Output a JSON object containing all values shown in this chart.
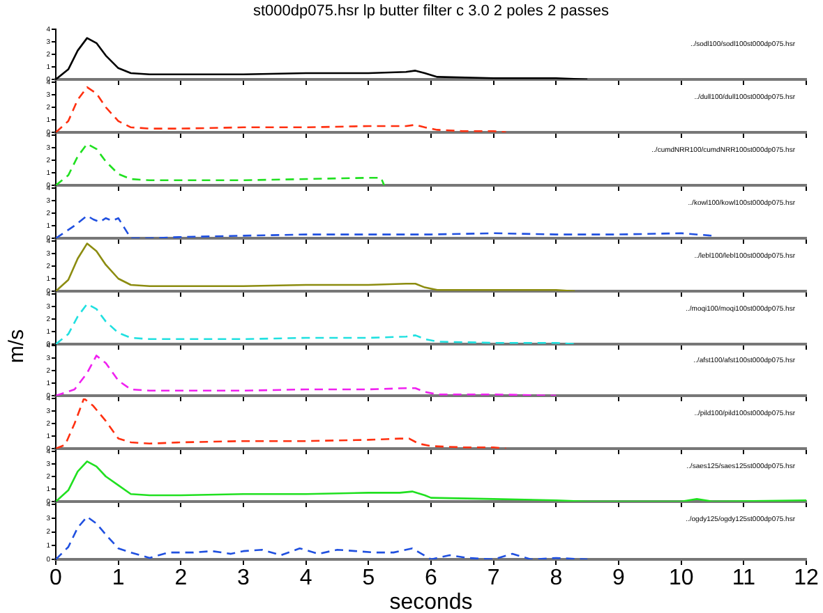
{
  "chart_data": [
    {
      "type": "line",
      "title": "st000dp075.hsr  lp  butter  filter  c  3.0  2  poles  2  passes",
      "annotations": [
        "../sodl100/sodl100st000dp075.hsr"
      ],
      "line_style": "solid",
      "marker": "none",
      "legend": false,
      "tick_labels": "y",
      "xlim": [
        0,
        12
      ],
      "xticks": [
        0,
        1,
        2,
        3,
        4,
        5,
        6,
        7,
        8,
        9,
        10,
        11,
        12
      ],
      "ylim": [
        0,
        4
      ],
      "yticks": [
        0,
        1,
        2,
        3,
        4
      ],
      "series": [
        {
          "color": "#000000",
          "x": [
            0,
            0.2,
            0.35,
            0.5,
            0.65,
            0.8,
            1.0,
            1.2,
            1.5,
            2,
            3,
            4,
            5,
            5.6,
            5.75,
            5.9,
            6.1,
            7,
            8,
            8.5
          ],
          "values": [
            0,
            0.8,
            2.3,
            3.3,
            2.9,
            1.9,
            0.9,
            0.5,
            0.4,
            0.4,
            0.4,
            0.5,
            0.5,
            0.6,
            0.7,
            0.5,
            0.2,
            0.1,
            0.1,
            0
          ]
        }
      ]
    },
    {
      "type": "line",
      "annotations": [
        "../dull100/dull100st000dp075.hsr"
      ],
      "line_style": "dashed",
      "marker": "none",
      "legend": false,
      "tick_labels": "y",
      "xlim": [
        0,
        12
      ],
      "xticks": [
        0,
        1,
        2,
        3,
        4,
        5,
        6,
        7,
        8,
        9,
        10,
        11,
        12
      ],
      "ylim": [
        0,
        4
      ],
      "yticks": [
        0,
        1,
        2,
        3,
        4
      ],
      "series": [
        {
          "color": "#ff3010",
          "x": [
            0,
            0.2,
            0.35,
            0.5,
            0.65,
            0.8,
            1.0,
            1.2,
            1.5,
            2,
            3,
            4,
            5,
            5.6,
            5.75,
            5.9,
            6.1,
            6.5,
            7,
            7.2
          ],
          "values": [
            0,
            0.9,
            2.6,
            3.6,
            3.1,
            2.0,
            0.9,
            0.4,
            0.3,
            0.3,
            0.4,
            0.4,
            0.5,
            0.5,
            0.6,
            0.4,
            0.2,
            0.1,
            0.1,
            0
          ]
        }
      ]
    },
    {
      "type": "line",
      "annotations": [
        "../cumdNRR100/cumdNRR100st000dp075.hsr"
      ],
      "line_style": "dashed",
      "marker": "none",
      "legend": false,
      "tick_labels": "y",
      "xlim": [
        0,
        12
      ],
      "xticks": [
        0,
        1,
        2,
        3,
        4,
        5,
        6,
        7,
        8,
        9,
        10,
        11,
        12
      ],
      "ylim": [
        0,
        4
      ],
      "yticks": [
        0,
        1,
        2,
        3,
        4
      ],
      "series": [
        {
          "color": "#20e020",
          "x": [
            0,
            0.2,
            0.35,
            0.5,
            0.65,
            0.8,
            1.0,
            1.2,
            1.5,
            2,
            3,
            4,
            5,
            5.2,
            5.25
          ],
          "values": [
            0,
            0.8,
            2.3,
            3.3,
            2.9,
            1.9,
            0.9,
            0.5,
            0.4,
            0.4,
            0.4,
            0.5,
            0.6,
            0.6,
            0
          ]
        }
      ]
    },
    {
      "type": "line",
      "annotations": [
        "../kowl100/kowl100st000dp075.hsr"
      ],
      "line_style": "dashed",
      "marker": "none",
      "legend": false,
      "tick_labels": "y",
      "xlim": [
        0,
        12
      ],
      "xticks": [
        0,
        1,
        2,
        3,
        4,
        5,
        6,
        7,
        8,
        9,
        10,
        11,
        12
      ],
      "ylim": [
        0,
        4
      ],
      "yticks": [
        0,
        1,
        2,
        3,
        4
      ],
      "series": [
        {
          "color": "#2050e0",
          "x": [
            0,
            0.3,
            0.5,
            0.6,
            0.7,
            0.8,
            0.9,
            1.0,
            1.1,
            1.2,
            1.5,
            2,
            3,
            4,
            5,
            6,
            7,
            8,
            9,
            10,
            10.5
          ],
          "values": [
            0,
            1,
            1.8,
            1.5,
            1.3,
            1.6,
            1.4,
            1.6,
            0.8,
            0,
            0,
            0.1,
            0.2,
            0.3,
            0.3,
            0.3,
            0.4,
            0.3,
            0.3,
            0.4,
            0.2
          ]
        }
      ]
    },
    {
      "type": "line",
      "annotations": [
        "../lebl100/lebl100st000dp075.hsr"
      ],
      "line_style": "solid",
      "marker": "none",
      "legend": false,
      "tick_labels": "y",
      "xlim": [
        0,
        12
      ],
      "xticks": [
        0,
        1,
        2,
        3,
        4,
        5,
        6,
        7,
        8,
        9,
        10,
        11,
        12
      ],
      "ylim": [
        0,
        4
      ],
      "yticks": [
        0,
        1,
        2,
        3,
        4
      ],
      "series": [
        {
          "color": "#8c8c10",
          "x": [
            0,
            0.2,
            0.35,
            0.5,
            0.65,
            0.8,
            1.0,
            1.2,
            1.5,
            2,
            3,
            4,
            5,
            5.6,
            5.75,
            5.9,
            6.1,
            7,
            8,
            8.3
          ],
          "values": [
            0,
            0.9,
            2.6,
            3.8,
            3.2,
            2.1,
            1.0,
            0.5,
            0.4,
            0.4,
            0.4,
            0.5,
            0.5,
            0.6,
            0.6,
            0.3,
            0.1,
            0.1,
            0.1,
            0
          ]
        }
      ]
    },
    {
      "type": "line",
      "annotations": [
        "../moqi100/moqi100st000dp075.hsr"
      ],
      "line_style": "dashed",
      "marker": "none",
      "legend": false,
      "tick_labels": "y",
      "xlim": [
        0,
        12
      ],
      "xticks": [
        0,
        1,
        2,
        3,
        4,
        5,
        6,
        7,
        8,
        9,
        10,
        11,
        12
      ],
      "ylim": [
        0,
        4
      ],
      "yticks": [
        0,
        1,
        2,
        3,
        4
      ],
      "series": [
        {
          "color": "#20e0e0",
          "x": [
            0,
            0.2,
            0.35,
            0.5,
            0.65,
            0.8,
            1.0,
            1.2,
            1.5,
            2,
            3,
            4,
            5,
            5.6,
            5.75,
            5.9,
            6.1,
            7,
            8,
            8.3
          ],
          "values": [
            0,
            0.8,
            2.2,
            3.2,
            2.8,
            1.8,
            0.9,
            0.5,
            0.4,
            0.4,
            0.4,
            0.5,
            0.5,
            0.6,
            0.7,
            0.4,
            0.2,
            0.1,
            0.1,
            0
          ]
        }
      ]
    },
    {
      "type": "line",
      "annotations": [
        "../afst100/afst100st000dp075.hsr"
      ],
      "line_style": "dashed",
      "marker": "none",
      "legend": false,
      "tick_labels": "y",
      "xlim": [
        0,
        12
      ],
      "xticks": [
        0,
        1,
        2,
        3,
        4,
        5,
        6,
        7,
        8,
        9,
        10,
        11,
        12
      ],
      "ylim": [
        0,
        4
      ],
      "yticks": [
        0,
        1,
        2,
        3,
        4
      ],
      "series": [
        {
          "color": "#f020f0",
          "x": [
            0,
            0.3,
            0.5,
            0.65,
            0.8,
            1.0,
            1.2,
            1.5,
            2,
            3,
            4,
            5,
            5.6,
            5.75,
            5.9,
            6.1,
            7,
            8
          ],
          "values": [
            0,
            0.5,
            1.8,
            3.2,
            2.6,
            1.2,
            0.5,
            0.4,
            0.4,
            0.4,
            0.5,
            0.5,
            0.6,
            0.6,
            0.3,
            0.1,
            0.1,
            0
          ]
        }
      ]
    },
    {
      "type": "line",
      "annotations": [
        "../pild100/pild100st000dp075.hsr"
      ],
      "line_style": "dashed",
      "marker": "none",
      "legend": false,
      "tick_labels": "y",
      "xlim": [
        0,
        12
      ],
      "xticks": [
        0,
        1,
        2,
        3,
        4,
        5,
        6,
        7,
        8,
        9,
        10,
        11,
        12
      ],
      "ylim": [
        0,
        4
      ],
      "yticks": [
        0,
        1,
        2,
        3,
        4
      ],
      "series": [
        {
          "color": "#ff3010",
          "x": [
            0,
            0.15,
            0.3,
            0.45,
            0.6,
            0.8,
            1.0,
            1.2,
            1.5,
            2,
            3,
            4,
            5,
            5.5,
            5.65,
            5.8,
            6.0,
            6.5,
            7,
            7.2
          ],
          "values": [
            0,
            0.3,
            2.0,
            4.0,
            3.4,
            2.2,
            0.8,
            0.5,
            0.4,
            0.5,
            0.6,
            0.6,
            0.7,
            0.8,
            0.8,
            0.4,
            0.2,
            0.1,
            0.1,
            0
          ]
        }
      ]
    },
    {
      "type": "line",
      "annotations": [
        "../saes125/saes125st000dp075.hsr"
      ],
      "line_style": "solid",
      "marker": "none",
      "legend": false,
      "tick_labels": "y",
      "xlim": [
        0,
        12
      ],
      "xticks": [
        0,
        1,
        2,
        3,
        4,
        5,
        6,
        7,
        8,
        9,
        10,
        11,
        12
      ],
      "ylim": [
        0,
        4
      ],
      "yticks": [
        0,
        1,
        2,
        3,
        4
      ],
      "series": [
        {
          "color": "#20e020",
          "x": [
            0,
            0.2,
            0.35,
            0.5,
            0.65,
            0.8,
            1.0,
            1.2,
            1.5,
            2,
            3,
            4,
            5,
            5.5,
            5.7,
            5.9,
            6.0,
            7,
            8,
            8.5,
            10,
            10.25,
            10.5,
            12
          ],
          "values": [
            0,
            0.9,
            2.4,
            3.2,
            2.8,
            2.0,
            1.3,
            0.6,
            0.5,
            0.5,
            0.6,
            0.6,
            0.7,
            0.7,
            0.8,
            0.5,
            0.3,
            0.2,
            0.1,
            0,
            0,
            0.2,
            0,
            0.1
          ]
        }
      ]
    },
    {
      "type": "line",
      "xlabel": "seconds",
      "annotations": [
        "../ogdy125/ogdy125st000dp075.hsr"
      ],
      "line_style": "dashed",
      "marker": "none",
      "legend": false,
      "xlim": [
        0,
        12
      ],
      "xticks": [
        0,
        1,
        2,
        3,
        4,
        5,
        6,
        7,
        8,
        9,
        10,
        11,
        12
      ],
      "ylim": [
        0,
        4
      ],
      "yticks": [
        0,
        1,
        2,
        3,
        4
      ],
      "ylabel": "m/s",
      "series": [
        {
          "color": "#2050e0",
          "x": [
            0,
            0.2,
            0.35,
            0.5,
            0.65,
            0.8,
            1.0,
            1.2,
            1.5,
            1.8,
            2.2,
            2.5,
            2.8,
            3.0,
            3.3,
            3.6,
            3.9,
            4.2,
            4.5,
            4.8,
            5.1,
            5.4,
            5.7,
            6.0,
            6.3,
            6.6,
            7.0,
            7.3,
            7.6,
            8.0,
            8.5
          ],
          "values": [
            0,
            0.9,
            2.3,
            3.1,
            2.6,
            1.8,
            0.8,
            0.5,
            0.1,
            0.5,
            0.5,
            0.6,
            0.4,
            0.6,
            0.7,
            0.3,
            0.8,
            0.4,
            0.7,
            0.6,
            0.5,
            0.5,
            0.8,
            0,
            0.3,
            0.1,
            0,
            0.4,
            0,
            0.1,
            0
          ]
        }
      ]
    }
  ]
}
